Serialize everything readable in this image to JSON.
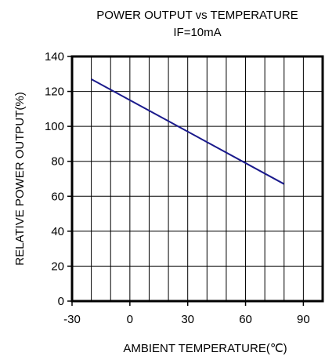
{
  "chart_data": {
    "type": "line",
    "title": "POWER OUTPUT vs TEMPERATURE",
    "subtitle": "IF=10mA",
    "xlabel": "AMBIENT TEMPERATURE(℃)",
    "ylabel": "RELATIVE POWER OUTPUT(%)",
    "xlim": [
      -30,
      100
    ],
    "ylim": [
      0,
      140
    ],
    "xticks": [
      -30,
      0,
      30,
      60,
      90
    ],
    "xtick_labels": [
      "-30",
      "0",
      "30",
      "60",
      "90"
    ],
    "yticks": [
      0,
      20,
      40,
      60,
      80,
      100,
      120,
      140
    ],
    "ytick_labels": [
      "0",
      "20",
      "40",
      "60",
      "80",
      "100",
      "120",
      "140"
    ],
    "x_grid_values": [
      -20,
      -10,
      0,
      10,
      20,
      30,
      40,
      50,
      60,
      70,
      80,
      90
    ],
    "grid": true,
    "series": [
      {
        "x": [
          -20,
          80
        ],
        "y": [
          127,
          67
        ]
      }
    ],
    "colors": {
      "line": "#1a1a8c",
      "grid": "#000000",
      "frame": "#000000"
    }
  }
}
